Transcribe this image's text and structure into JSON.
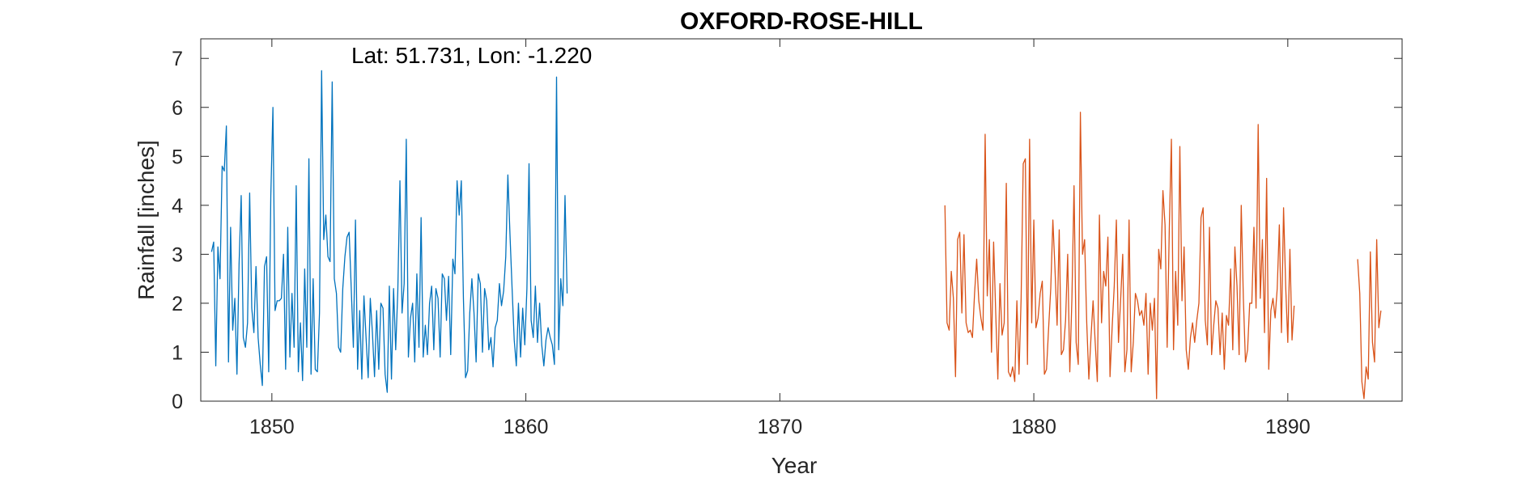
{
  "chart_data": {
    "type": "line",
    "title": "OXFORD-ROSE-HILL",
    "xlabel": "Year",
    "ylabel": "Rainfall [inches]",
    "annotation": "Lat: 51.731, Lon: -1.220",
    "xlim": [
      1847.2,
      1894.5
    ],
    "ylim": [
      0,
      7.4
    ],
    "xticks": [
      1850,
      1860,
      1870,
      1880,
      1890
    ],
    "yticks": [
      0,
      1,
      2,
      3,
      4,
      5,
      6,
      7
    ],
    "grid": false,
    "series": [
      {
        "color": "#0072BD",
        "x_start": 1847.625,
        "x_step": 0.083333,
        "values": [
          3.05,
          3.25,
          0.72,
          3.15,
          2.5,
          4.8,
          4.7,
          5.62,
          0.8,
          3.55,
          1.45,
          2.1,
          0.55,
          2.8,
          4.2,
          1.3,
          1.1,
          1.6,
          4.25,
          1.9,
          1.4,
          2.75,
          1.3,
          0.75,
          0.32,
          2.75,
          2.95,
          0.6,
          4.2,
          6.0,
          1.85,
          2.05,
          2.05,
          2.1,
          3.0,
          0.65,
          3.55,
          0.9,
          2.2,
          1.1,
          4.4,
          0.6,
          1.6,
          0.42,
          2.7,
          1.1,
          4.95,
          0.55,
          2.5,
          0.65,
          0.6,
          1.8,
          6.75,
          3.3,
          3.8,
          2.95,
          2.85,
          6.52,
          2.5,
          2.2,
          1.1,
          1.0,
          2.3,
          2.95,
          3.35,
          3.45,
          2.3,
          1.1,
          3.7,
          0.65,
          1.85,
          0.45,
          2.15,
          1.3,
          0.48,
          2.1,
          1.4,
          0.5,
          1.85,
          0.65,
          2.0,
          1.9,
          0.55,
          0.18,
          2.35,
          0.45,
          2.3,
          1.05,
          2.25,
          4.5,
          1.8,
          2.4,
          5.35,
          0.9,
          1.7,
          2.0,
          0.8,
          2.6,
          1.1,
          3.75,
          0.9,
          1.55,
          0.95,
          2.0,
          2.35,
          1.05,
          2.3,
          2.1,
          0.9,
          2.6,
          2.5,
          1.65,
          2.55,
          0.95,
          2.9,
          2.6,
          4.5,
          3.8,
          4.5,
          2.1,
          0.48,
          0.62,
          1.8,
          2.5,
          1.8,
          0.8,
          2.6,
          2.4,
          1.0,
          2.3,
          2.05,
          1.05,
          1.3,
          0.7,
          1.5,
          1.65,
          2.4,
          1.95,
          2.25,
          2.95,
          4.62,
          3.4,
          2.3,
          1.25,
          0.72,
          2.0,
          0.9,
          1.9,
          1.15,
          2.3,
          4.85,
          1.65,
          1.3,
          2.35,
          1.2,
          2.0,
          1.15,
          0.72,
          1.25,
          1.5,
          1.3,
          1.15,
          0.75,
          6.62,
          1.05,
          2.5,
          1.95,
          4.2,
          2.2
        ]
      },
      {
        "color": "#D95319",
        "x_start": 1876.5,
        "x_step": 0.083333,
        "values": [
          4.0,
          1.6,
          1.45,
          2.65,
          2.1,
          0.5,
          3.3,
          3.45,
          1.8,
          3.4,
          1.6,
          1.4,
          1.45,
          1.3,
          2.2,
          2.9,
          2.05,
          1.7,
          1.45,
          5.45,
          2.15,
          3.3,
          1.0,
          3.25,
          1.8,
          0.45,
          2.4,
          1.35,
          1.6,
          4.45,
          0.6,
          0.5,
          0.7,
          0.4,
          2.05,
          0.55,
          2.1,
          4.85,
          4.95,
          0.75,
          5.35,
          1.6,
          3.7,
          1.5,
          1.7,
          2.2,
          2.45,
          0.55,
          0.65,
          1.5,
          2.3,
          3.7,
          2.7,
          1.55,
          3.5,
          0.95,
          1.05,
          1.65,
          3.0,
          0.6,
          2.1,
          4.4,
          1.2,
          0.75,
          5.9,
          3.0,
          3.3,
          1.6,
          0.45,
          1.3,
          2.05,
          1.2,
          0.4,
          3.8,
          1.6,
          2.65,
          2.35,
          3.35,
          0.5,
          1.5,
          2.35,
          3.7,
          1.2,
          2.05,
          3.0,
          0.6,
          1.05,
          3.7,
          0.6,
          1.2,
          2.2,
          2.05,
          1.75,
          1.85,
          1.55,
          2.2,
          0.55,
          2.0,
          1.45,
          2.1,
          0.05,
          3.1,
          2.7,
          4.3,
          3.6,
          1.1,
          3.5,
          5.35,
          1.05,
          2.65,
          1.55,
          5.2,
          2.05,
          3.15,
          1.05,
          0.65,
          1.3,
          1.6,
          1.2,
          1.65,
          2.0,
          3.75,
          3.95,
          1.65,
          1.15,
          3.55,
          0.95,
          1.55,
          2.05,
          1.9,
          0.95,
          1.8,
          0.65,
          1.75,
          1.55,
          2.7,
          1.05,
          3.15,
          2.35,
          0.95,
          4.0,
          2.1,
          0.8,
          1.05,
          2.0,
          2.0,
          3.55,
          1.9,
          5.65,
          2.1,
          3.3,
          1.4,
          4.55,
          0.65,
          1.85,
          2.1,
          1.7,
          2.3,
          3.6,
          1.4,
          3.95,
          2.35,
          1.2,
          3.1,
          1.25,
          1.95
        ]
      },
      {
        "color": "#D95319",
        "x_start": 1892.75,
        "x_step": 0.083333,
        "values": [
          2.9,
          2.2,
          0.4,
          0.05,
          0.7,
          0.45,
          3.05,
          1.2,
          0.8,
          3.3,
          1.5,
          1.85
        ]
      }
    ]
  }
}
